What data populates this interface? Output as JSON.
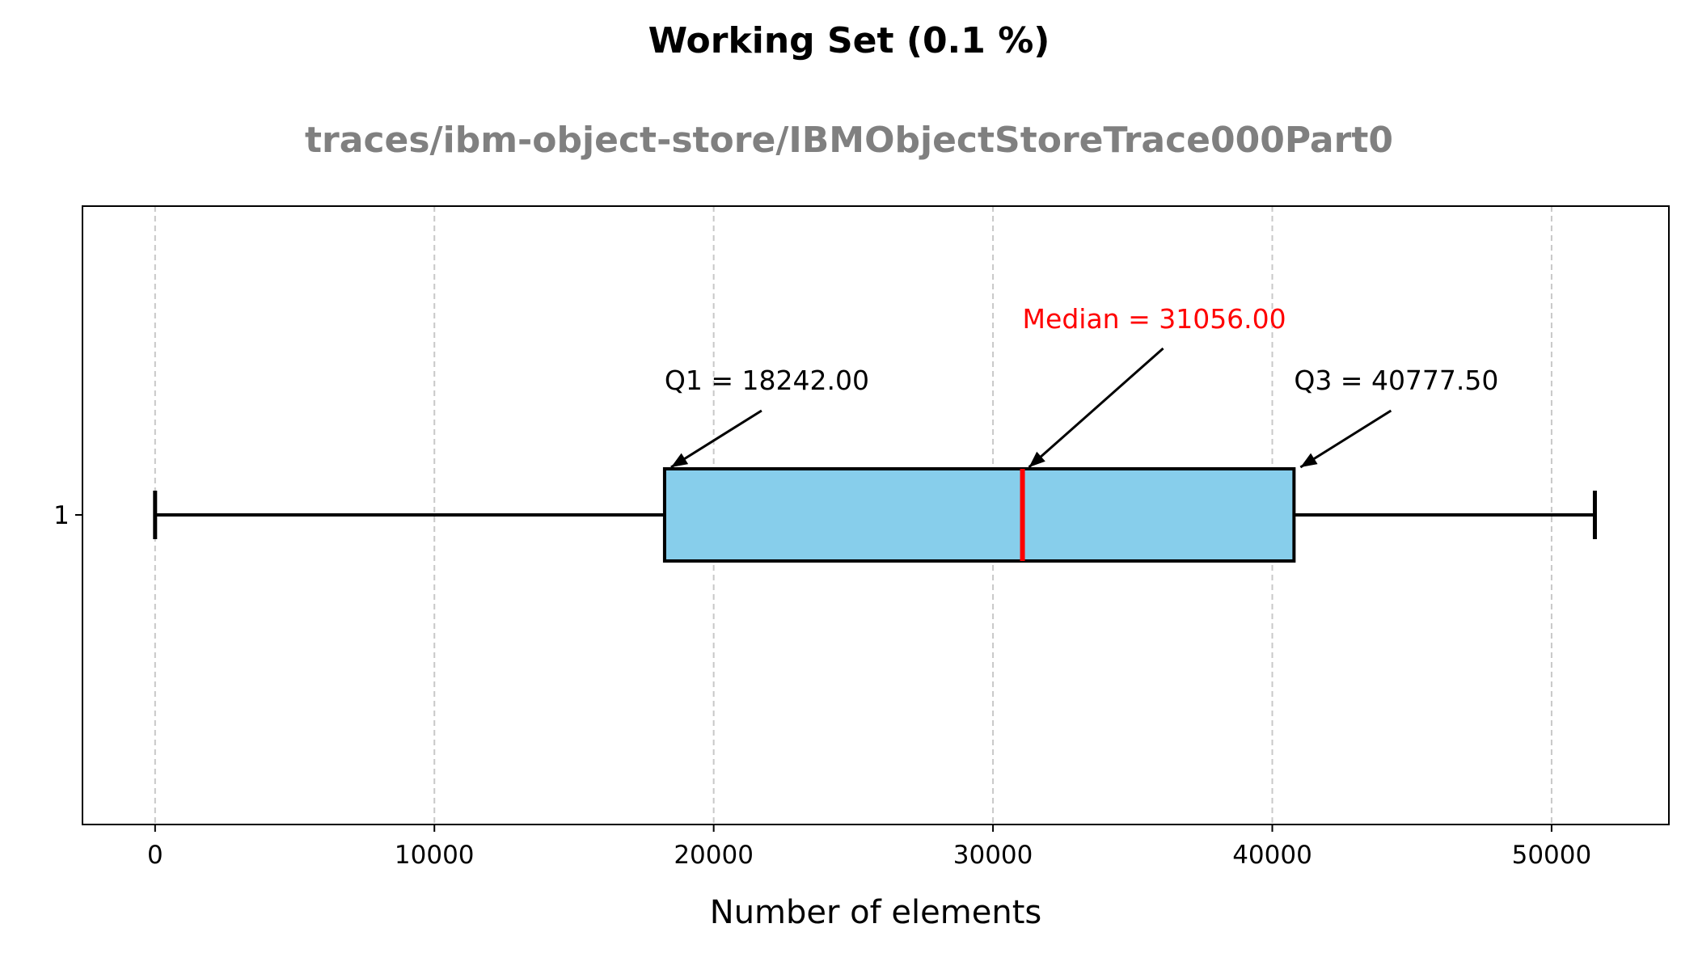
{
  "chart_data": {
    "type": "boxplot",
    "title": "Working Set (0.1 %)",
    "subtitle": "traces/ibm-object-store/IBMObjectStoreTrace000Part0",
    "xlabel": "Number of elements",
    "ylabel": "",
    "orientation": "horizontal",
    "xlim": [
      -2600,
      54200
    ],
    "x_ticks": [
      0,
      10000,
      20000,
      30000,
      40000,
      50000
    ],
    "y_ticks": [
      "1"
    ],
    "grid": "x-dashed",
    "box": {
      "label": "1",
      "whisker_low": 0,
      "q1": 18242.0,
      "median": 31056.0,
      "q3": 40777.5,
      "whisker_high": 51550
    },
    "annotations": {
      "q1": "Q1 = 18242.00",
      "median": "Median = 31056.00",
      "q3": "Q3 = 40777.50"
    },
    "colors": {
      "box_fill": "#87CEEB",
      "median_line": "#FF0000",
      "subtitle": "#808080",
      "grid": "#c8c8c8"
    }
  }
}
